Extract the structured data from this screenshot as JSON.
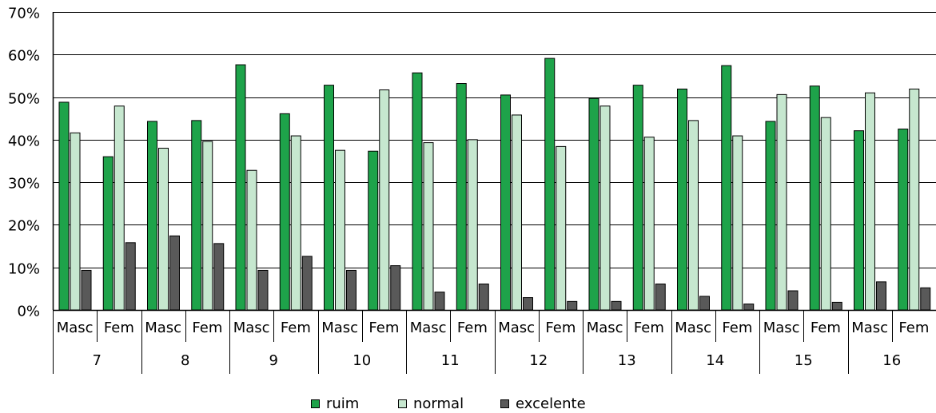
{
  "chart_data": {
    "type": "bar",
    "groups": [
      "7",
      "8",
      "9",
      "10",
      "11",
      "12",
      "13",
      "14",
      "15",
      "16"
    ],
    "subgroups": [
      "Masc",
      "Fem"
    ],
    "categories": [
      "Masc",
      "Fem",
      "Masc",
      "Fem",
      "Masc",
      "Fem",
      "Masc",
      "Fem",
      "Masc",
      "Fem",
      "Masc",
      "Fem",
      "Masc",
      "Fem",
      "Masc",
      "Fem",
      "Masc",
      "Fem",
      "Masc",
      "Fem"
    ],
    "series": [
      {
        "name": "ruim",
        "color": "#1ea34a",
        "values": [
          48.8,
          36.0,
          44.3,
          44.5,
          57.6,
          46.1,
          52.8,
          37.3,
          55.7,
          53.2,
          50.5,
          59.1,
          49.7,
          52.8,
          51.9,
          57.4,
          44.3,
          52.6,
          42.1,
          42.5
        ]
      },
      {
        "name": "normal",
        "color": "#c6e7cf",
        "values": [
          41.6,
          47.9,
          38.0,
          39.6,
          32.8,
          40.9,
          37.5,
          51.7,
          39.3,
          40.0,
          45.8,
          38.4,
          47.9,
          40.6,
          44.5,
          40.9,
          50.6,
          45.2,
          51.0,
          51.9
        ]
      },
      {
        "name": "excelente",
        "color": "#595959",
        "values": [
          9.3,
          15.8,
          17.4,
          15.6,
          9.3,
          12.6,
          9.3,
          10.4,
          4.2,
          6.1,
          2.9,
          2.0,
          2.0,
          6.1,
          3.2,
          1.4,
          4.5,
          1.8,
          6.6,
          5.2
        ]
      }
    ],
    "yticks": [
      "0%",
      "10%",
      "20%",
      "30%",
      "40%",
      "50%",
      "60%",
      "70%"
    ],
    "ylim": [
      0,
      70
    ],
    "grid": true,
    "legend_position": "bottom"
  }
}
